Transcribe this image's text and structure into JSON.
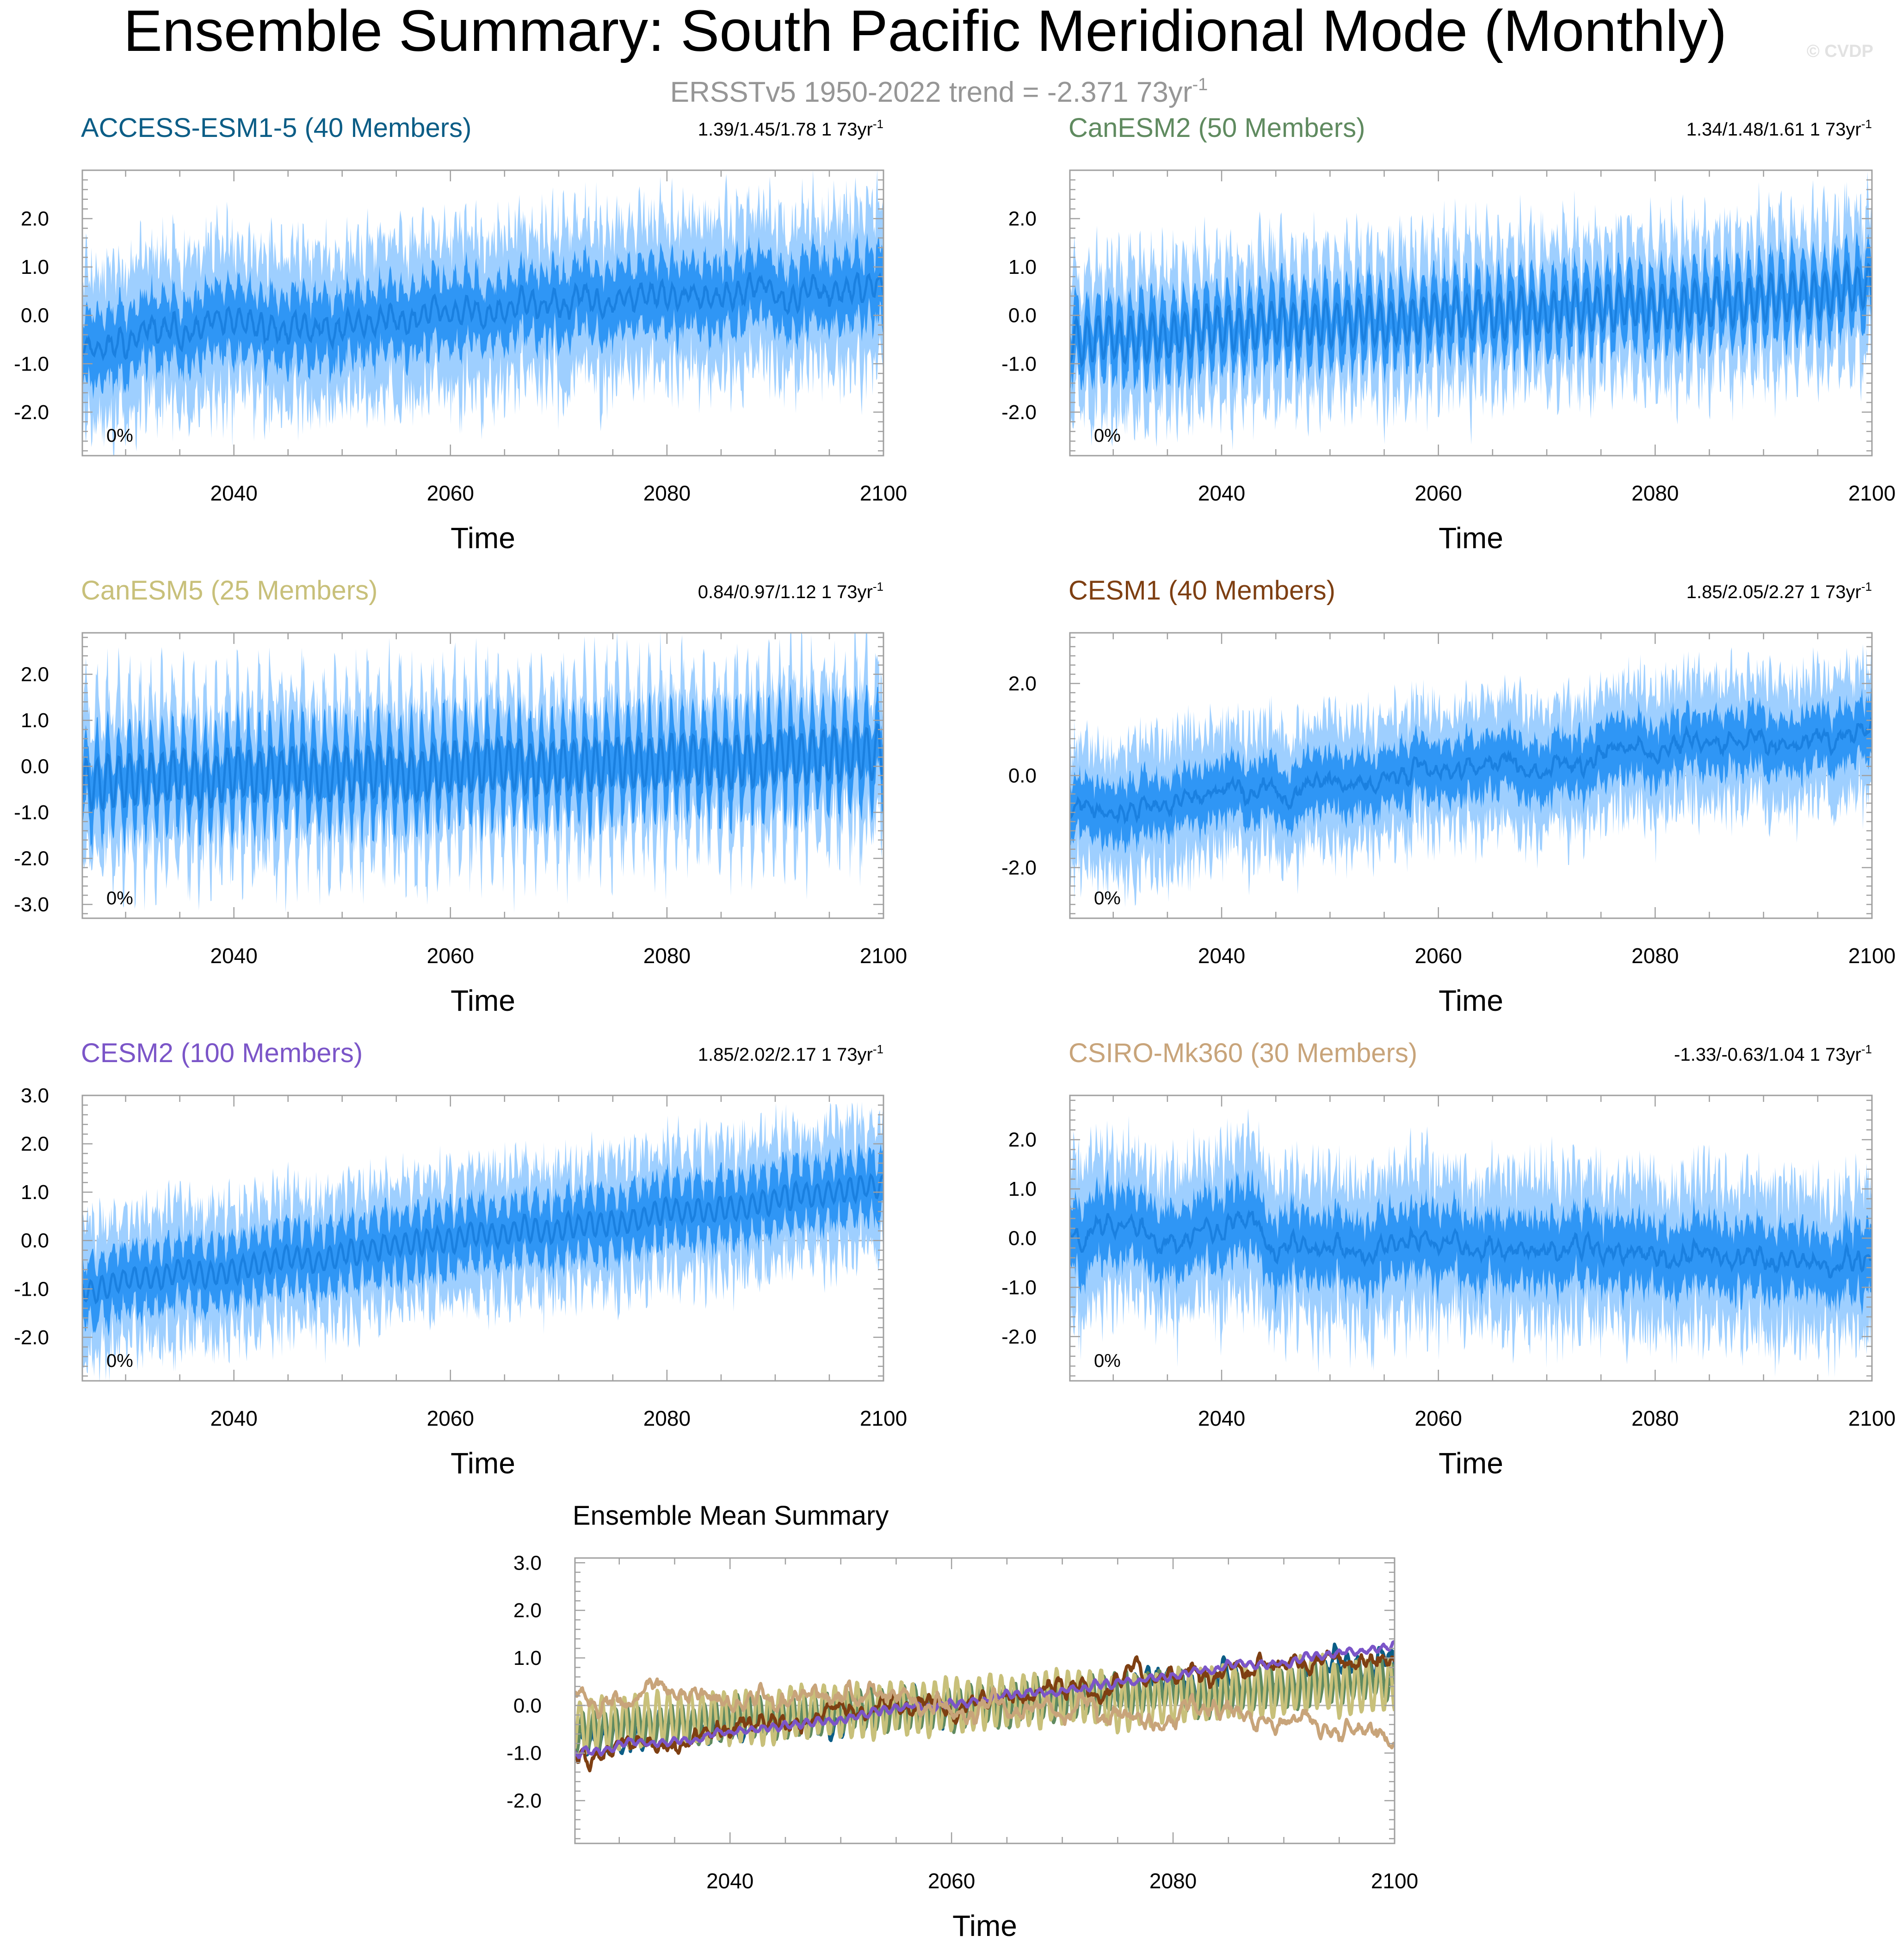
{
  "title": "Ensemble Summary: South Pacific Meridional Mode (Monthly)",
  "subtitle": "ERSSTv5 1950-2022 trend = -2.371 73yr",
  "subtitle_superscript": "-1",
  "watermark": "© CVDP",
  "colors": {
    "band_outer": "#9ecfff",
    "band_inner": "#2f96f5",
    "mean_line": "#1a80e0",
    "zero_line": "#b4b4b4",
    "axis": "#a0a0a0",
    "subtitle": "#969696"
  },
  "chart_data": [
    {
      "type": "line",
      "name": "ACCESS-ESM1-5",
      "title": "ACCESS-ESM1-5 (40 Members)",
      "title_color": "#0b5d86",
      "trend_label": "1.39/1.45/1.78 1 73yr",
      "trend_sup": "-1",
      "percent_label": "0%",
      "xlabel": "Time",
      "ylabel": "",
      "xlim": [
        2026,
        2100
      ],
      "ylim": [
        -2.9,
        3.0
      ],
      "xticks": [
        2040,
        2060,
        2080,
        2100
      ],
      "yticks": [
        2.0,
        1.0,
        0.0,
        -1.0,
        -2.0
      ],
      "ytick_labels": [
        "2.0",
        "1.0",
        "0.0",
        "-1.0",
        "-2.0"
      ],
      "mean": {
        "start": -0.55,
        "end": 0.65,
        "noise": 0.28
      },
      "spread": {
        "inner": 0.5,
        "outer": 1.15
      },
      "seasonal_amp": 0.2,
      "seed": 11
    },
    {
      "type": "line",
      "name": "CanESM2",
      "title": "CanESM2 (50 Members)",
      "title_color": "#5f8a5f",
      "trend_label": "1.34/1.48/1.61 1 73yr",
      "trend_sup": "-1",
      "percent_label": "0%",
      "xlabel": "Time",
      "ylabel": "",
      "xlim": [
        2026,
        2100
      ],
      "ylim": [
        -2.9,
        3.0
      ],
      "xticks": [
        2040,
        2060,
        2080,
        2100
      ],
      "yticks": [
        2.0,
        1.0,
        0.0,
        -1.0,
        -2.0
      ],
      "ytick_labels": [
        "2.0",
        "1.0",
        "0.0",
        "-1.0",
        "-2.0"
      ],
      "mean": {
        "start": -0.5,
        "end": 0.5,
        "noise": 0.15
      },
      "spread": {
        "inner": 0.45,
        "outer": 1.05
      },
      "seasonal_amp": 0.45,
      "seed": 23
    },
    {
      "type": "line",
      "name": "CanESM5",
      "title": "CanESM5 (25 Members)",
      "title_color": "#c8c07a",
      "trend_label": "0.84/0.97/1.12 1 73yr",
      "trend_sup": "-1",
      "percent_label": "0%",
      "xlabel": "Time",
      "ylabel": "",
      "xlim": [
        2026,
        2100
      ],
      "ylim": [
        -3.3,
        2.9
      ],
      "xticks": [
        2040,
        2060,
        2080,
        2100
      ],
      "yticks": [
        2.0,
        1.0,
        0.0,
        -1.0,
        -2.0,
        -3.0
      ],
      "ytick_labels": [
        "2.0",
        "1.0",
        "0.0",
        "-1.0",
        "-2.0",
        "-3.0"
      ],
      "mean": {
        "start": -0.35,
        "end": 0.3,
        "noise": 0.12
      },
      "spread": {
        "inner": 0.55,
        "outer": 1.2
      },
      "seasonal_amp": 0.55,
      "seed": 37
    },
    {
      "type": "line",
      "name": "CESM1",
      "title": "CESM1 (40 Members)",
      "title_color": "#7e3f12",
      "trend_label": "1.85/2.05/2.27 1 73yr",
      "trend_sup": "-1",
      "percent_label": "0%",
      "xlabel": "Time",
      "ylabel": "",
      "xlim": [
        2026,
        2100
      ],
      "ylim": [
        -3.1,
        3.1
      ],
      "xticks": [
        2040,
        2060,
        2080,
        2100
      ],
      "yticks": [
        2.0,
        0.0,
        -2.0
      ],
      "ytick_labels": [
        "2.0",
        "0.0",
        "-2.0"
      ],
      "mean": {
        "start": -0.8,
        "end": 1.0,
        "noise": 0.3
      },
      "spread": {
        "inner": 0.45,
        "outer": 1.0
      },
      "seasonal_amp": 0.1,
      "seed": 41
    },
    {
      "type": "line",
      "name": "CESM2",
      "title": "CESM2 (100 Members)",
      "title_color": "#7b55c8",
      "trend_label": "1.85/2.02/2.17 1 73yr",
      "trend_sup": "-1",
      "percent_label": "0%",
      "xlabel": "Time",
      "ylabel": "",
      "xlim": [
        2026,
        2100
      ],
      "ylim": [
        -2.9,
        3.0
      ],
      "xticks": [
        2040,
        2060,
        2080,
        2100
      ],
      "yticks": [
        3.0,
        2.0,
        1.0,
        0.0,
        -1.0,
        -2.0
      ],
      "ytick_labels": [
        "3.0",
        "2.0",
        "1.0",
        "0.0",
        "-1.0",
        "-2.0"
      ],
      "mean": {
        "start": -0.95,
        "end": 1.15,
        "noise": 0.12
      },
      "spread": {
        "inner": 0.45,
        "outer": 0.95
      },
      "seasonal_amp": 0.22,
      "seed": 53
    },
    {
      "type": "line",
      "name": "CSIRO-Mk360",
      "title": "CSIRO-Mk360 (30 Members)",
      "title_color": "#c8a47a",
      "trend_label": "-1.33/-0.63/1.04 1 73yr",
      "trend_sup": "-1",
      "percent_label": "0%",
      "xlabel": "Time",
      "ylabel": "",
      "xlim": [
        2026,
        2100
      ],
      "ylim": [
        -2.9,
        2.9
      ],
      "xticks": [
        2040,
        2060,
        2080,
        2100
      ],
      "yticks": [
        2.0,
        1.0,
        0.0,
        -1.0,
        -2.0
      ],
      "ytick_labels": [
        "2.0",
        "1.0",
        "0.0",
        "-1.0",
        "-2.0"
      ],
      "mean": {
        "start": 0.25,
        "end": -0.55,
        "noise": 0.3
      },
      "spread": {
        "inner": 0.5,
        "outer": 1.1
      },
      "seasonal_amp": 0.1,
      "seed": 67
    },
    {
      "type": "line",
      "name": "Ensemble Mean Summary",
      "title": "Ensemble Mean Summary",
      "title_color": "#000000",
      "xlabel": "Time",
      "ylabel": "",
      "xlim": [
        2026,
        2100
      ],
      "ylim": [
        -2.9,
        3.1
      ],
      "xticks": [
        2040,
        2060,
        2080,
        2100
      ],
      "yticks": [
        3.0,
        2.0,
        1.0,
        0.0,
        -1.0,
        -2.0
      ],
      "ytick_labels": [
        "3.0",
        "2.0",
        "1.0",
        "0.0",
        "-1.0",
        "-2.0"
      ],
      "series": [
        {
          "name": "ACCESS-ESM1-5",
          "color": "#0b5d86",
          "start": -0.7,
          "end": 0.9,
          "noise": 0.28,
          "seasonal_amp": 0.2,
          "seed": 111
        },
        {
          "name": "CanESM2",
          "color": "#5f8a5f",
          "start": -0.55,
          "end": 0.55,
          "noise": 0.15,
          "seasonal_amp": 0.4,
          "seed": 123
        },
        {
          "name": "CanESM5",
          "color": "#c8c07a",
          "start": -0.4,
          "end": 0.45,
          "noise": 0.12,
          "seasonal_amp": 0.55,
          "seed": 137
        },
        {
          "name": "CESM1",
          "color": "#7e3f12",
          "start": -0.95,
          "end": 1.1,
          "noise": 0.28,
          "seasonal_amp": 0.08,
          "seed": 141
        },
        {
          "name": "CESM2",
          "color": "#7b55c8",
          "start": -1.0,
          "end": 1.25,
          "noise": 0.08,
          "seasonal_amp": 0.06,
          "seed": 153
        },
        {
          "name": "CSIRO-Mk360",
          "color": "#c8a47a",
          "start": 0.35,
          "end": -0.5,
          "noise": 0.3,
          "seasonal_amp": 0.08,
          "seed": 167
        }
      ]
    }
  ]
}
